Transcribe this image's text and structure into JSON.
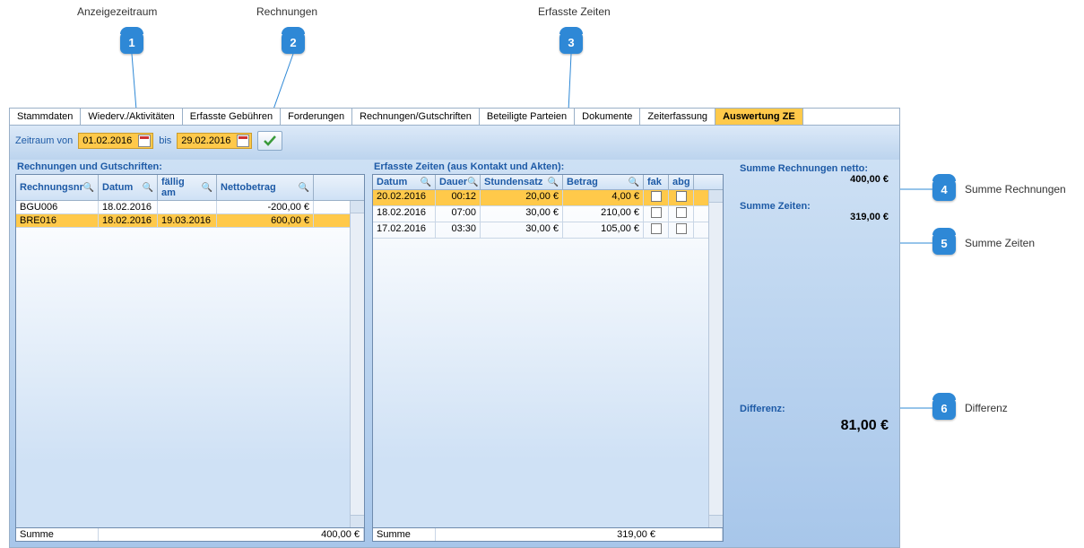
{
  "callouts": {
    "c1": {
      "label": "Anzeigezeitraum",
      "num": "1"
    },
    "c2": {
      "label": "Rechnungen",
      "num": "2"
    },
    "c3": {
      "label": "Erfasste Zeiten",
      "num": "3"
    },
    "c4": {
      "label": "Summe Rechnungen",
      "num": "4"
    },
    "c5": {
      "label": "Summe Zeiten",
      "num": "5"
    },
    "c6": {
      "label": "Differenz",
      "num": "6"
    }
  },
  "tabs": [
    "Stammdaten",
    "Wiederv./Aktivitäten",
    "Erfasste Gebühren",
    "Forderungen",
    "Rechnungen/Gutschriften",
    "Beteiligte Parteien",
    "Dokumente",
    "Zeiterfassung",
    "Auswertung ZE"
  ],
  "activeTab": 8,
  "toolbar": {
    "label_from": "Zeitraum von",
    "date_from": "01.02.2016",
    "label_to": "bis",
    "date_to": "29.02.2016"
  },
  "invoices": {
    "title": "Rechnungen und Gutschriften:",
    "columns": [
      "Rechnungsnr",
      "Datum",
      "fällig am",
      "Nettobetrag"
    ],
    "rows": [
      {
        "nr": "BRE016",
        "datum": "18.02.2016",
        "faellig": "19.03.2016",
        "betrag": "600,00 €",
        "selected": true
      },
      {
        "nr": "BGU006",
        "datum": "18.02.2016",
        "faellig": "",
        "betrag": "-200,00 €",
        "selected": false
      }
    ],
    "footer_label": "Summe",
    "footer_value": "400,00 €"
  },
  "times": {
    "title": "Erfasste Zeiten (aus Kontakt und Akten):",
    "columns": [
      "Datum",
      "Dauer",
      "Stundensatz",
      "Betrag",
      "fak",
      "abg"
    ],
    "rows": [
      {
        "datum": "20.02.2016",
        "dauer": "00:12",
        "satz": "20,00 €",
        "betrag": "4,00 €",
        "fak": false,
        "abg": false,
        "selected": true
      },
      {
        "datum": "18.02.2016",
        "dauer": "07:00",
        "satz": "30,00 €",
        "betrag": "210,00 €",
        "fak": false,
        "abg": false,
        "selected": false
      },
      {
        "datum": "17.02.2016",
        "dauer": "03:30",
        "satz": "30,00 €",
        "betrag": "105,00 €",
        "fak": false,
        "abg": false,
        "selected": false
      }
    ],
    "footer_label": "Summe",
    "footer_value": "319,00 €"
  },
  "summary": {
    "invoices_label": "Summe Rechnungen netto:",
    "invoices_value": "400,00 €",
    "times_label": "Summe Zeiten:",
    "times_value": "319,00 €",
    "diff_label": "Differenz:",
    "diff_value": "81,00 €"
  },
  "colors": {
    "accent": "#ffc94a",
    "link": "#1d5aa6",
    "badge": "#2e88d6"
  }
}
